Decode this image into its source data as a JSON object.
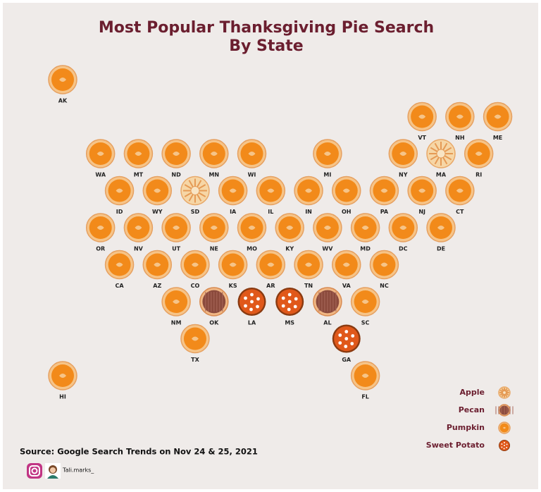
{
  "title_line1": "Most Popular Thanksgiving Pie Search",
  "title_line2": "By State",
  "legend": [
    {
      "name": "Apple"
    },
    {
      "name": "Pecan"
    },
    {
      "name": "Pumpkin"
    },
    {
      "name": "Sweet Potato"
    }
  ],
  "states": [
    {
      "code": "AK",
      "pie": "Pumpkin"
    },
    {
      "code": "VT",
      "pie": "Pumpkin"
    },
    {
      "code": "NH",
      "pie": "Pumpkin"
    },
    {
      "code": "ME",
      "pie": "Pumpkin"
    },
    {
      "code": "WA",
      "pie": "Pumpkin"
    },
    {
      "code": "MT",
      "pie": "Pumpkin"
    },
    {
      "code": "ND",
      "pie": "Pumpkin"
    },
    {
      "code": "MN",
      "pie": "Pumpkin"
    },
    {
      "code": "WI",
      "pie": "Pumpkin"
    },
    {
      "code": "MI",
      "pie": "Pumpkin"
    },
    {
      "code": "NY",
      "pie": "Pumpkin"
    },
    {
      "code": "MA",
      "pie": "Apple"
    },
    {
      "code": "RI",
      "pie": "Pumpkin"
    },
    {
      "code": "ID",
      "pie": "Pumpkin"
    },
    {
      "code": "WY",
      "pie": "Pumpkin"
    },
    {
      "code": "SD",
      "pie": "Apple"
    },
    {
      "code": "IA",
      "pie": "Pumpkin"
    },
    {
      "code": "IL",
      "pie": "Pumpkin"
    },
    {
      "code": "IN",
      "pie": "Pumpkin"
    },
    {
      "code": "OH",
      "pie": "Pumpkin"
    },
    {
      "code": "PA",
      "pie": "Pumpkin"
    },
    {
      "code": "NJ",
      "pie": "Pumpkin"
    },
    {
      "code": "CT",
      "pie": "Pumpkin"
    },
    {
      "code": "OR",
      "pie": "Pumpkin"
    },
    {
      "code": "NV",
      "pie": "Pumpkin"
    },
    {
      "code": "UT",
      "pie": "Pumpkin"
    },
    {
      "code": "NE",
      "pie": "Pumpkin"
    },
    {
      "code": "MO",
      "pie": "Pumpkin"
    },
    {
      "code": "KY",
      "pie": "Pumpkin"
    },
    {
      "code": "WV",
      "pie": "Pumpkin"
    },
    {
      "code": "MD",
      "pie": "Pumpkin"
    },
    {
      "code": "DC",
      "pie": "Pumpkin"
    },
    {
      "code": "DE",
      "pie": "Pumpkin"
    },
    {
      "code": "CA",
      "pie": "Pumpkin"
    },
    {
      "code": "AZ",
      "pie": "Pumpkin"
    },
    {
      "code": "CO",
      "pie": "Pumpkin"
    },
    {
      "code": "KS",
      "pie": "Pumpkin"
    },
    {
      "code": "AR",
      "pie": "Pumpkin"
    },
    {
      "code": "TN",
      "pie": "Pumpkin"
    },
    {
      "code": "VA",
      "pie": "Pumpkin"
    },
    {
      "code": "NC",
      "pie": "Pumpkin"
    },
    {
      "code": "NM",
      "pie": "Pumpkin"
    },
    {
      "code": "OK",
      "pie": "Pecan"
    },
    {
      "code": "LA",
      "pie": "Sweet Potato"
    },
    {
      "code": "MS",
      "pie": "Sweet Potato"
    },
    {
      "code": "AL",
      "pie": "Pecan"
    },
    {
      "code": "SC",
      "pie": "Pumpkin"
    },
    {
      "code": "TX",
      "pie": "Pumpkin"
    },
    {
      "code": "GA",
      "pie": "Sweet Potato"
    },
    {
      "code": "HI",
      "pie": "Pumpkin"
    },
    {
      "code": "FL",
      "pie": "Pumpkin"
    }
  ],
  "source": "Source: Google Search Trends on Nov 24 & 25, 2021",
  "handle": "Tali.marks_"
}
